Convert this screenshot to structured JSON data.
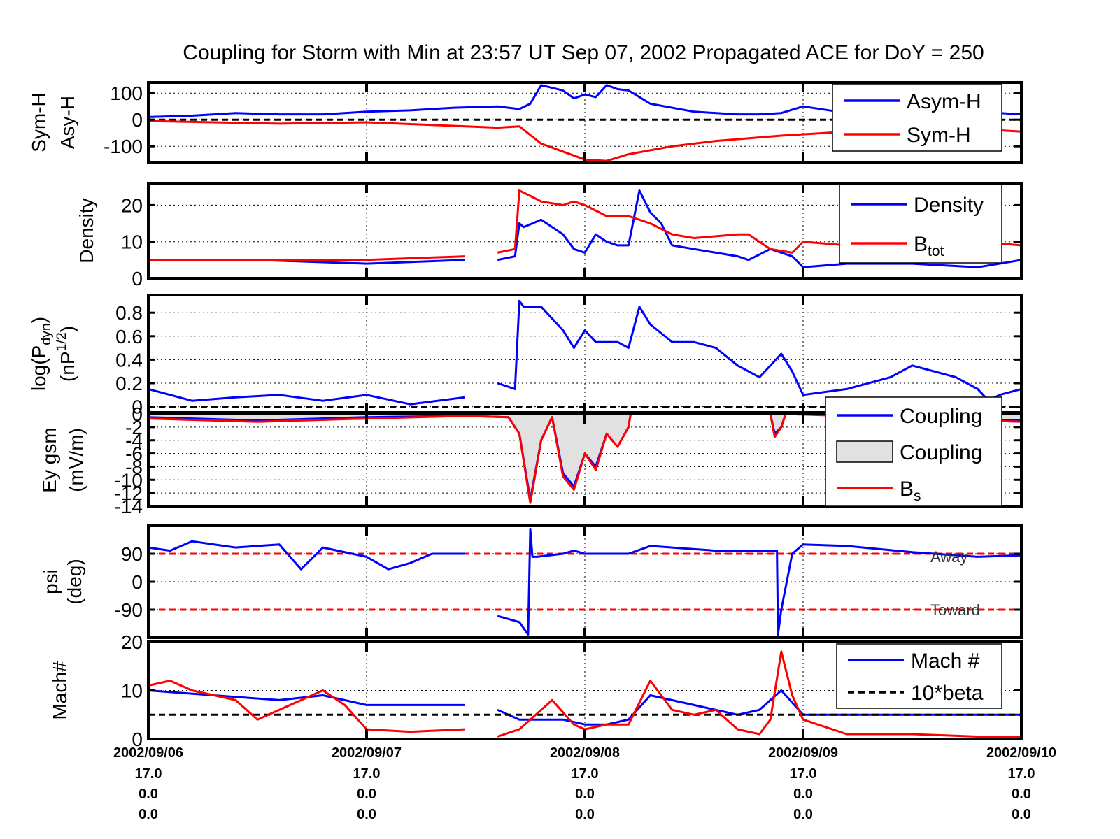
{
  "title": "Coupling for Storm with Min at 23:57 UT Sep 07, 2002  Propagated ACE for DoY = 250",
  "colors": {
    "blue": "#0000ff",
    "red": "#ff0000",
    "black": "#000000",
    "fill": "#e1e1e1"
  },
  "x_axis": {
    "range_days": [
      6,
      10
    ],
    "ticks": [
      {
        "date": "2002/09/06",
        "l1": "17.0",
        "l2": "0.0",
        "l3": "0.0"
      },
      {
        "date": "2002/09/07",
        "l1": "17.0",
        "l2": "0.0",
        "l3": "0.0"
      },
      {
        "date": "2002/09/08",
        "l1": "17.0",
        "l2": "0.0",
        "l3": "0.0"
      },
      {
        "date": "2002/09/09",
        "l1": "17.0",
        "l2": "0.0",
        "l3": "0.0"
      },
      {
        "date": "2002/09/10",
        "l1": "17.0",
        "l2": "0.0",
        "l3": "0.0"
      }
    ]
  },
  "chart_data": [
    {
      "type": "line",
      "ylabel": [
        "Sym-H",
        "Asy-H"
      ],
      "ylim": [
        -160,
        140
      ],
      "yticks": [
        100,
        0,
        -100
      ],
      "yticklabels": [
        "100",
        "0",
        "-100"
      ],
      "hline": 0,
      "legend": [
        "Asym-H",
        "Sym-H"
      ],
      "series": [
        {
          "name": "Asym-H",
          "color": "#0000ff",
          "x": [
            6.0,
            6.2,
            6.4,
            6.6,
            6.8,
            7.0,
            7.2,
            7.4,
            7.6,
            7.7,
            7.75,
            7.8,
            7.9,
            7.95,
            8.0,
            8.05,
            8.1,
            8.15,
            8.2,
            8.3,
            8.5,
            8.7,
            8.8,
            8.9,
            9.0,
            9.2,
            9.4,
            9.6,
            9.8,
            10.0
          ],
          "y": [
            10,
            15,
            25,
            20,
            20,
            30,
            35,
            45,
            50,
            40,
            60,
            130,
            110,
            80,
            95,
            85,
            130,
            115,
            110,
            60,
            30,
            20,
            20,
            25,
            50,
            25,
            30,
            25,
            30,
            20
          ]
        },
        {
          "name": "Sym-H",
          "color": "#ff0000",
          "x": [
            6.0,
            6.3,
            6.6,
            7.0,
            7.3,
            7.6,
            7.7,
            7.8,
            7.9,
            8.0,
            8.1,
            8.2,
            8.4,
            8.6,
            8.9,
            9.0,
            9.2,
            9.5,
            9.8,
            10.0
          ],
          "y": [
            -5,
            -10,
            -15,
            -10,
            -20,
            -30,
            -25,
            -90,
            -120,
            -150,
            -155,
            -130,
            -100,
            -80,
            -60,
            -55,
            -45,
            -40,
            -35,
            -45
          ]
        }
      ]
    },
    {
      "type": "line",
      "ylabel": [
        "Density"
      ],
      "ylim": [
        0,
        26
      ],
      "yticks": [
        0,
        10,
        20
      ],
      "yticklabels": [
        "0",
        "10",
        "20"
      ],
      "legend": [
        "Density",
        "B_tot"
      ],
      "series": [
        {
          "name": "Density",
          "color": "#0000ff",
          "x": [
            6.0,
            6.5,
            7.0,
            7.45,
            null,
            7.6,
            7.68,
            7.7,
            7.72,
            7.8,
            7.9,
            7.95,
            8.0,
            8.05,
            8.1,
            8.15,
            8.2,
            8.25,
            8.3,
            8.35,
            8.4,
            8.5,
            8.6,
            8.7,
            8.75,
            8.85,
            8.95,
            9.0,
            9.2,
            9.5,
            9.8,
            10.0
          ],
          "y": [
            5,
            5,
            4,
            5,
            null,
            5,
            6,
            15,
            14,
            16,
            12,
            8,
            7,
            12,
            10,
            9,
            9,
            24,
            18,
            15,
            9,
            8,
            7,
            6,
            5,
            8,
            6,
            3,
            4,
            4,
            3,
            5
          ]
        },
        {
          "name": "B_tot",
          "color": "#ff0000",
          "x": [
            6.0,
            6.5,
            7.0,
            7.45,
            null,
            7.6,
            7.68,
            7.7,
            7.8,
            7.9,
            7.95,
            8.0,
            8.1,
            8.2,
            8.3,
            8.4,
            8.5,
            8.7,
            8.75,
            8.85,
            8.95,
            9.0,
            9.2,
            9.5,
            9.8,
            10.0
          ],
          "y": [
            5,
            5,
            5,
            6,
            null,
            7,
            8,
            24,
            21,
            20,
            21,
            20,
            17,
            17,
            15,
            12,
            11,
            12,
            12,
            8,
            7,
            10,
            9,
            10,
            10,
            9
          ]
        }
      ]
    },
    {
      "type": "line",
      "ylabel": [
        "log(P_dyn)",
        "(nP^1/2)"
      ],
      "ylim": [
        -0.05,
        0.95
      ],
      "yticks": [
        0,
        0.2,
        0.4,
        0.6,
        0.8
      ],
      "yticklabels": [
        "0",
        "0.2",
        "0.4",
        "0.6",
        "0.8"
      ],
      "hline": 0,
      "series": [
        {
          "name": "",
          "color": "#0000ff",
          "x": [
            6.0,
            6.2,
            6.4,
            6.6,
            6.8,
            7.0,
            7.2,
            7.45,
            null,
            7.6,
            7.68,
            7.7,
            7.72,
            7.8,
            7.9,
            7.95,
            8.0,
            8.05,
            8.15,
            8.2,
            8.25,
            8.3,
            8.4,
            8.5,
            8.6,
            8.7,
            8.8,
            8.9,
            8.95,
            9.0,
            9.2,
            9.4,
            9.5,
            9.7,
            9.8,
            9.85,
            9.9,
            10.0
          ],
          "y": [
            0.15,
            0.05,
            0.08,
            0.1,
            0.05,
            0.1,
            0.02,
            0.08,
            null,
            0.2,
            0.15,
            0.9,
            0.85,
            0.85,
            0.65,
            0.5,
            0.65,
            0.55,
            0.55,
            0.5,
            0.85,
            0.7,
            0.55,
            0.55,
            0.5,
            0.35,
            0.25,
            0.45,
            0.3,
            0.1,
            0.15,
            0.25,
            0.35,
            0.25,
            0.15,
            0.05,
            0.1,
            0.15
          ]
        }
      ]
    },
    {
      "type": "area",
      "ylabel": [
        "Ey gsm",
        "(mV/m)"
      ],
      "ylim": [
        -14,
        0
      ],
      "yticks": [
        0,
        -2,
        -4,
        -6,
        -8,
        -10,
        -12,
        -14
      ],
      "yticklabels": [
        "0",
        "-2",
        "-4",
        "-6",
        "-8",
        "-10",
        "-12",
        "-14"
      ],
      "legend": [
        "Coupling",
        "Coupling",
        "B_s"
      ],
      "series": [
        {
          "name": "Coupling",
          "color": "#0000ff",
          "x": [
            6.0,
            6.5,
            7.0,
            7.45,
            7.65,
            7.7,
            7.75,
            7.8,
            7.85,
            7.9,
            7.95,
            8.0,
            8.05,
            8.1,
            8.15,
            8.2,
            8.21,
            8.85,
            8.87,
            8.9,
            8.92,
            10.0
          ],
          "y": [
            -0.5,
            -1,
            -0.5,
            -0.3,
            -0.5,
            -3,
            -13,
            -4,
            -0.5,
            -9,
            -11,
            -6,
            -8,
            -3,
            -5,
            -2,
            0,
            0,
            -3,
            -2,
            0,
            -1
          ]
        },
        {
          "name": "B_s",
          "color": "#ff0000",
          "x": [
            6.0,
            6.5,
            7.0,
            7.45,
            7.65,
            7.7,
            7.75,
            7.8,
            7.85,
            7.9,
            7.95,
            8.0,
            8.05,
            8.1,
            8.15,
            8.2,
            8.21,
            8.85,
            8.87,
            8.9,
            8.92,
            10.0
          ],
          "y": [
            -0.7,
            -1.2,
            -0.7,
            -0.3,
            -0.5,
            -3,
            -13.5,
            -4,
            -0.5,
            -9.5,
            -11.5,
            -6,
            -8.5,
            -3,
            -5,
            -2,
            0,
            0,
            -3.5,
            -2,
            0,
            -1.2
          ]
        }
      ]
    },
    {
      "type": "line",
      "ylabel": [
        "psi",
        "(deg)"
      ],
      "ylim": [
        -180,
        180
      ],
      "yticks": [
        90,
        0,
        -90
      ],
      "yticklabels": [
        "90",
        "0",
        "-90"
      ],
      "hlines": [
        90,
        -90
      ],
      "annotations": [
        "Away",
        "Toward"
      ],
      "series": [
        {
          "name": "",
          "color": "#0000ff",
          "x": [
            6.0,
            6.1,
            6.2,
            6.4,
            6.6,
            6.7,
            6.8,
            7.0,
            7.1,
            7.2,
            7.3,
            7.45,
            null,
            7.6,
            7.7,
            7.74,
            7.75,
            7.76,
            7.78,
            7.9,
            7.95,
            8.0,
            8.2,
            8.3,
            8.6,
            8.88,
            8.885,
            8.9,
            8.95,
            9.0,
            9.2,
            9.5,
            9.8,
            10.0
          ],
          "y": [
            110,
            100,
            130,
            110,
            120,
            40,
            110,
            80,
            40,
            60,
            90,
            90,
            null,
            -110,
            -130,
            -170,
            170,
            80,
            80,
            90,
            100,
            90,
            90,
            115,
            100,
            100,
            -170,
            -90,
            90,
            120,
            115,
            95,
            80,
            85
          ]
        }
      ]
    },
    {
      "type": "line",
      "ylabel": [
        "Mach#"
      ],
      "ylim": [
        0,
        20
      ],
      "yticks": [
        0,
        10,
        20
      ],
      "yticklabels": [
        "0",
        "10",
        "20"
      ],
      "legend": [
        "Mach #",
        "10*beta"
      ],
      "series": [
        {
          "name": "Mach #",
          "color": "#0000ff",
          "x": [
            6.0,
            6.3,
            6.6,
            6.8,
            7.0,
            7.2,
            7.45,
            null,
            7.6,
            7.7,
            7.9,
            8.0,
            8.1,
            8.2,
            8.3,
            8.5,
            8.6,
            8.7,
            8.8,
            8.9,
            9.0,
            9.2,
            9.5,
            9.8,
            10.0
          ],
          "y": [
            10,
            9,
            8,
            9,
            7,
            7,
            7,
            null,
            6,
            4,
            4,
            3,
            3,
            4,
            9,
            7,
            6,
            5,
            6,
            10,
            5,
            5,
            5,
            5,
            5
          ]
        },
        {
          "name": "10*beta",
          "color": "#000000",
          "x": [
            6.0,
            10.0
          ],
          "y": [
            5,
            5
          ]
        },
        {
          "name": "",
          "color": "#ff0000",
          "x": [
            6.0,
            6.1,
            6.2,
            6.4,
            6.5,
            6.6,
            6.8,
            6.9,
            7.0,
            7.2,
            7.45,
            null,
            7.6,
            7.7,
            7.85,
            7.95,
            8.0,
            8.1,
            8.2,
            8.3,
            8.4,
            8.5,
            8.6,
            8.7,
            8.8,
            8.85,
            8.9,
            8.95,
            9.0,
            9.2,
            9.5,
            9.8,
            10.0
          ],
          "y": [
            11,
            12,
            10,
            8,
            4,
            6,
            10,
            7,
            2,
            1.5,
            2,
            null,
            0.5,
            2,
            8,
            3,
            2,
            3,
            3,
            12,
            6,
            5,
            6,
            2,
            1,
            4,
            18,
            9,
            4,
            1,
            1,
            0.5,
            0.5
          ]
        }
      ]
    }
  ]
}
